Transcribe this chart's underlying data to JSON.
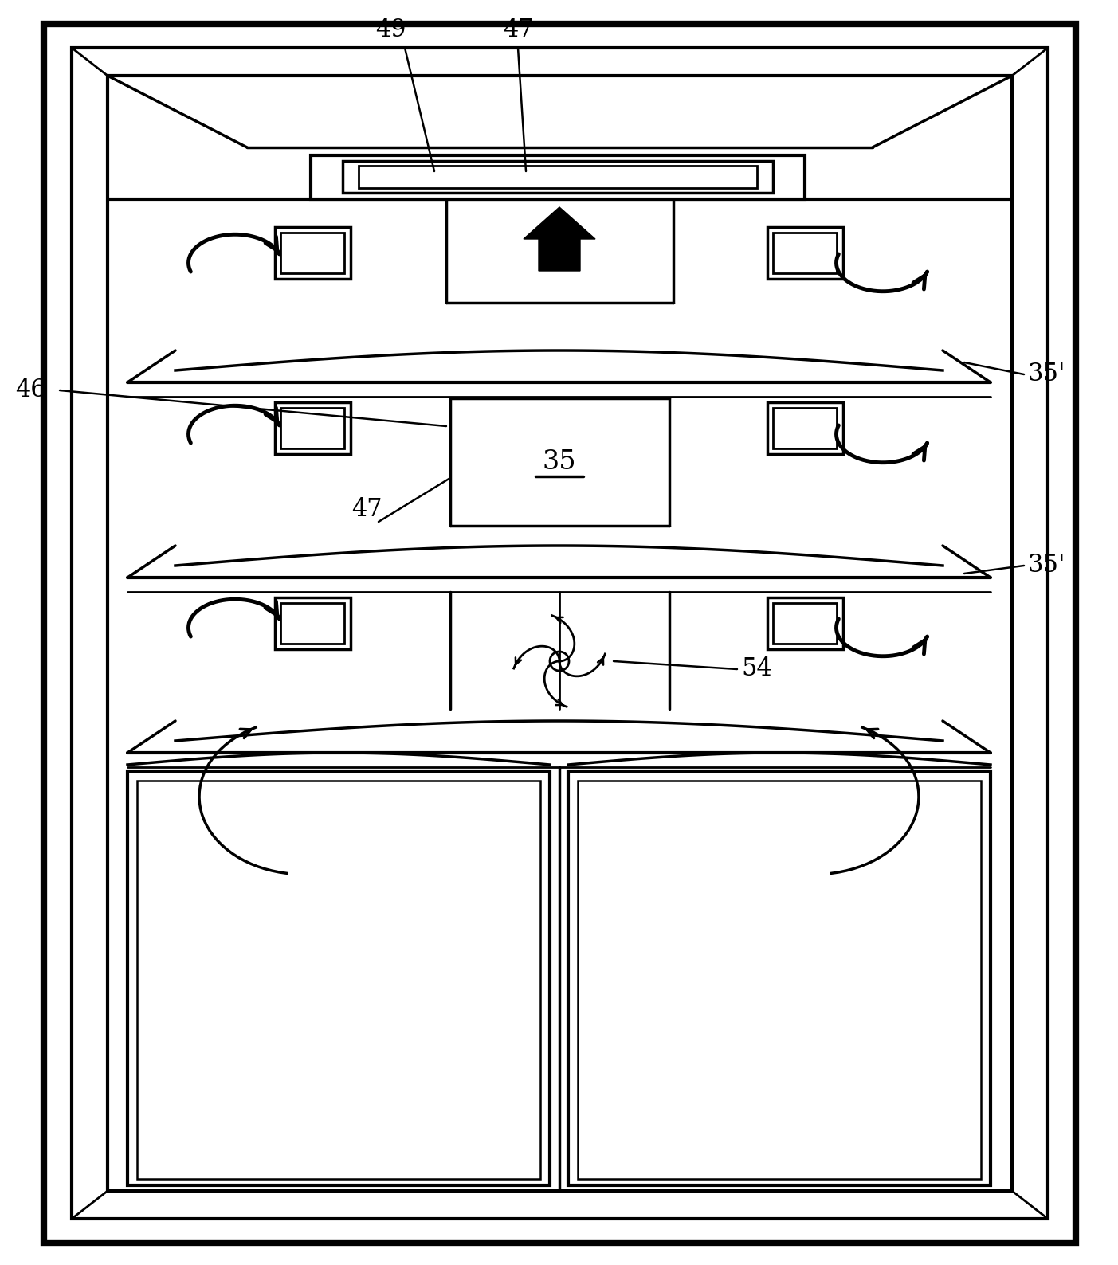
{
  "bg_color": "#ffffff",
  "line_color": "#000000",
  "figsize": [
    14.03,
    15.88
  ],
  "dpi": 100
}
